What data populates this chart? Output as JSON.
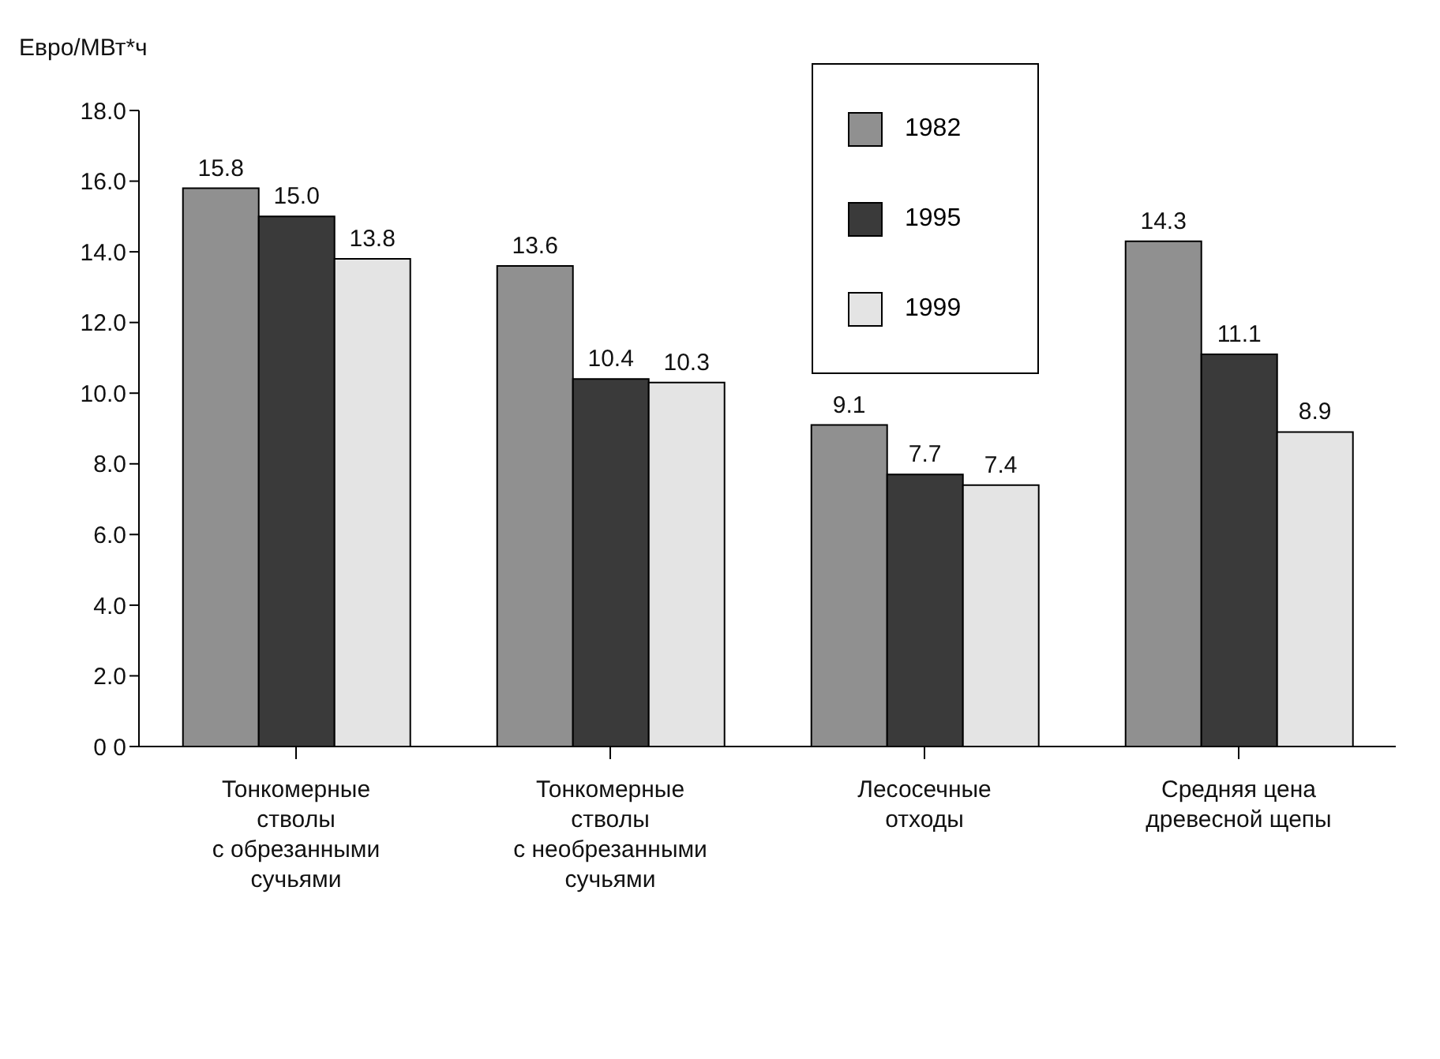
{
  "chart_data": {
    "type": "bar",
    "ylabel": "Евро/МВт*ч",
    "categories": [
      "Тонкомерные\nстволы\nс обрезанными\nсучьями",
      "Тонкомерные\nстволы\nс необрезанными\nсучьями",
      "Лесосечные\nотходы",
      "Средняя цена\nдревесной щепы"
    ],
    "series": [
      {
        "name": "1982",
        "color": "#909090",
        "values": [
          15.8,
          13.6,
          9.1,
          14.3
        ],
        "value_labels": [
          "15.8",
          "13.6",
          "9.1",
          "14.3"
        ]
      },
      {
        "name": "1995",
        "color": "#3a3a3a",
        "values": [
          15.0,
          10.4,
          7.7,
          11.1
        ],
        "value_labels": [
          "15.0",
          "10.4",
          "7.7",
          "11.1"
        ]
      },
      {
        "name": "1999",
        "color": "#e4e4e4",
        "values": [
          13.8,
          10.3,
          7.4,
          8.9
        ],
        "value_labels": [
          "13.8",
          "10.3",
          "7.4",
          "8.9"
        ]
      }
    ],
    "ylim": [
      0,
      18
    ],
    "yticks": [
      {
        "value": 0,
        "label": "0 0"
      },
      {
        "value": 2,
        "label": "2.0"
      },
      {
        "value": 4,
        "label": "4.0"
      },
      {
        "value": 6,
        "label": "6.0"
      },
      {
        "value": 8,
        "label": "8.0"
      },
      {
        "value": 10,
        "label": "10.0"
      },
      {
        "value": 12,
        "label": "12.0"
      },
      {
        "value": 14,
        "label": "14.0"
      },
      {
        "value": 16,
        "label": "16.0"
      },
      {
        "value": 18,
        "label": "18.0"
      }
    ],
    "grid": false,
    "legend": "top"
  }
}
